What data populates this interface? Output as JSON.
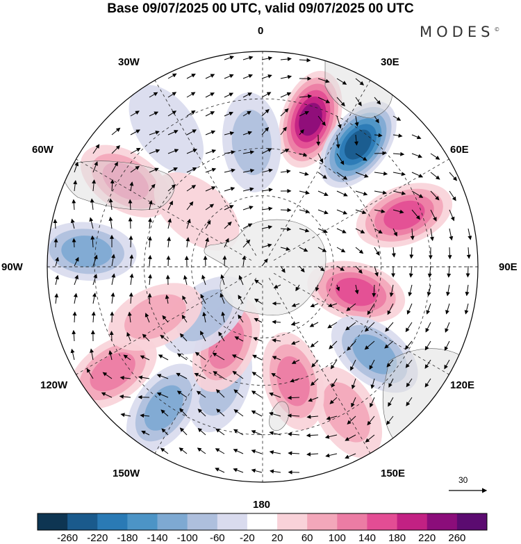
{
  "title": "Base 09/07/2025 00 UTC, valid 09/07/2025 00 UTC",
  "brand": {
    "name": "MODES",
    "mark": "©"
  },
  "longitude_labels": {
    "n0": "0",
    "e30": "30E",
    "e60": "60E",
    "e90": "90E",
    "e120": "120E",
    "e150": "150E",
    "s180": "180",
    "w150": "150W",
    "w120": "120W",
    "w90": "90W",
    "w60": "60W",
    "w30": "30W"
  },
  "wind_reference": {
    "value": "30",
    "icon": "arrow-right-icon"
  },
  "colorbar": {
    "ticks": [
      "-260",
      "-220",
      "-180",
      "-140",
      "-100",
      "-60",
      "-20",
      "20",
      "60",
      "100",
      "140",
      "180",
      "220",
      "260"
    ],
    "colors": [
      "#0e3552",
      "#1a5a8c",
      "#2a7ab5",
      "#4c94c6",
      "#7ea9d2",
      "#aebfdd",
      "#d9dbee",
      "#ffffff",
      "#f9d2d9",
      "#f3a7ba",
      "#ec7ca4",
      "#e34d94",
      "#c22183",
      "#8b0d7a",
      "#5b0b70"
    ]
  },
  "map": {
    "projection": "south-polar-stereographic",
    "land_color": "#ececec",
    "grid_style": "dashed",
    "anomalies": [
      {
        "lon": 18,
        "r": 0.72,
        "value": 230
      },
      {
        "lon": 38,
        "r": 0.72,
        "value": -230
      },
      {
        "lon": 70,
        "r": 0.7,
        "value": 150
      },
      {
        "lon": 105,
        "r": 0.45,
        "value": 170
      },
      {
        "lon": 128,
        "r": 0.66,
        "value": -110
      },
      {
        "lon": 150,
        "r": 0.78,
        "value": 90
      },
      {
        "lon": 165,
        "r": 0.55,
        "value": 110
      },
      {
        "lon": -160,
        "r": 0.58,
        "value": -90
      },
      {
        "lon": -145,
        "r": 0.8,
        "value": -110
      },
      {
        "lon": -125,
        "r": 0.85,
        "value": 120
      },
      {
        "lon": -155,
        "r": 0.4,
        "value": 130
      },
      {
        "lon": -130,
        "r": 0.35,
        "value": -90
      },
      {
        "lon": -115,
        "r": 0.55,
        "value": 60
      },
      {
        "lon": -85,
        "r": 0.82,
        "value": -110
      },
      {
        "lon": -58,
        "r": 0.75,
        "value": 110
      },
      {
        "lon": -35,
        "r": 0.78,
        "value": -50
      },
      {
        "lon": -5,
        "r": 0.58,
        "value": -90
      },
      {
        "lon": -50,
        "r": 0.4,
        "value": 40
      }
    ]
  }
}
